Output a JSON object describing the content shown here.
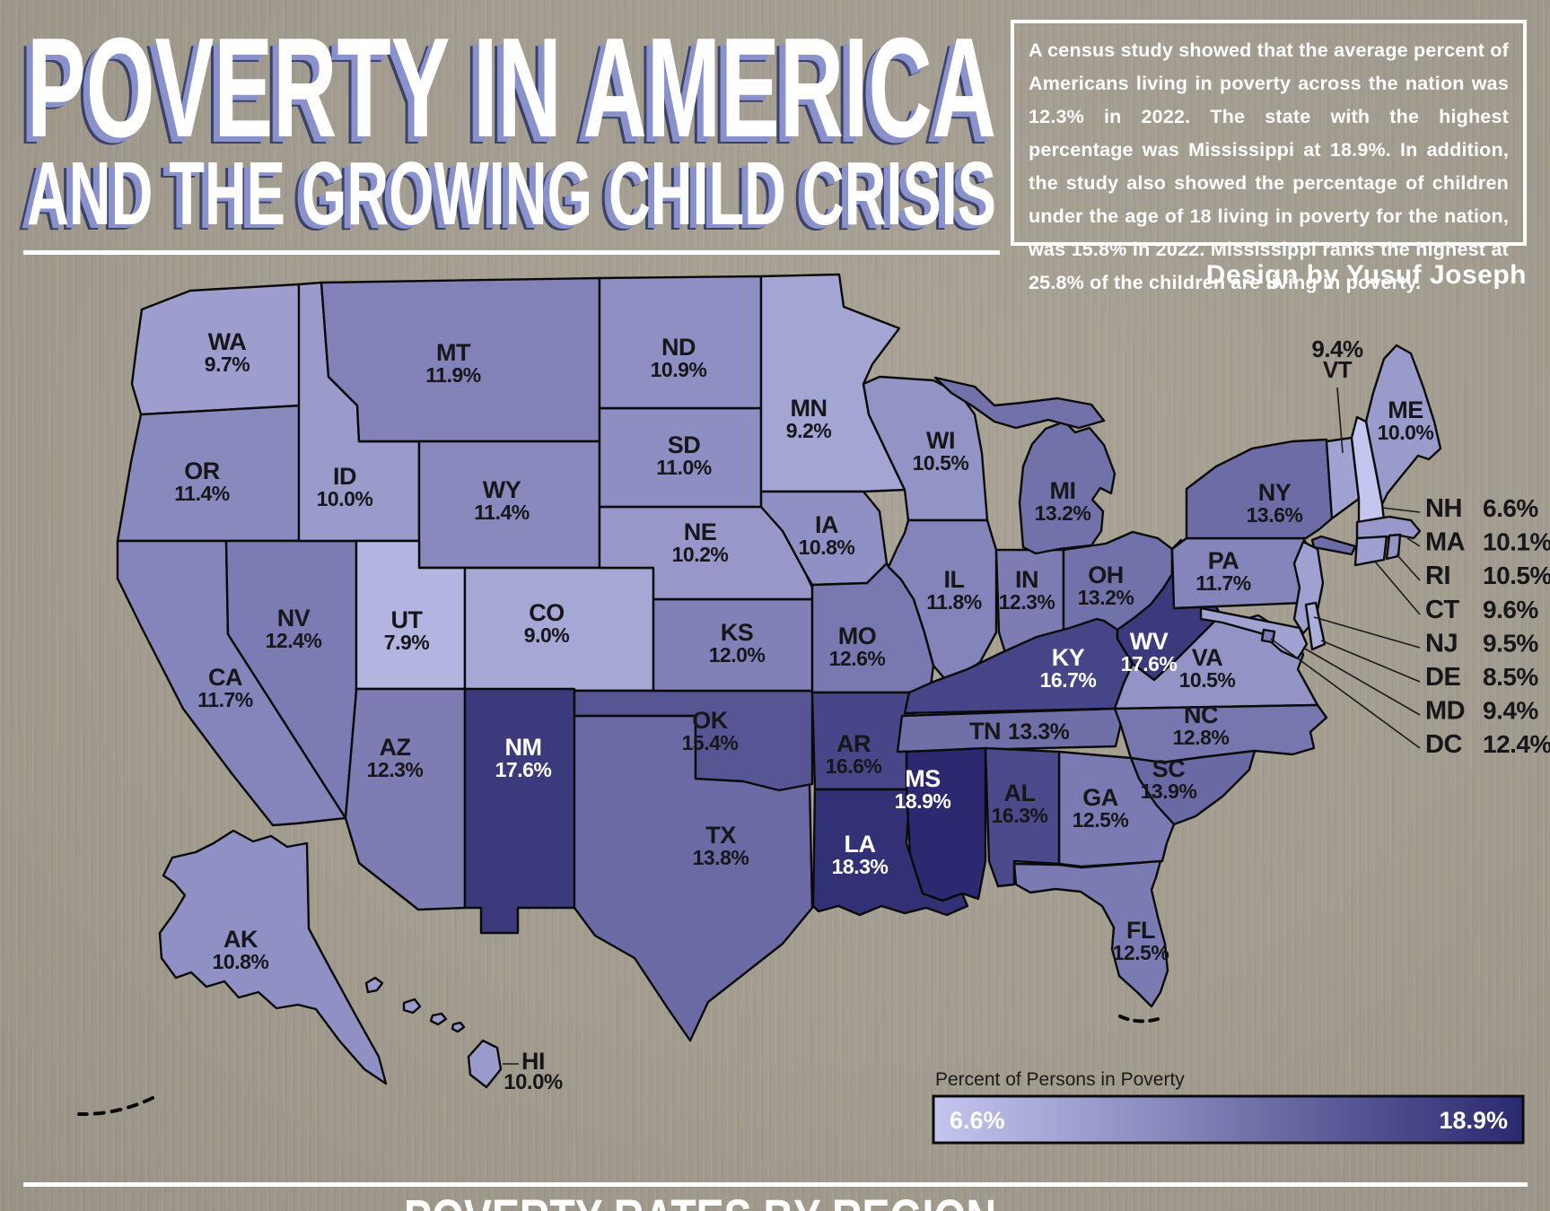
{
  "header": {
    "title_line1": "POVERTY IN AMERICA",
    "title_line2": "AND THE GROWING CHILD CRISIS",
    "intro": "A census study showed that the average percent of Americans living in poverty across the nation was 12.3% in 2022. The state with the highest percentage was Mississippi at 18.9%. In addition, the study also showed the percentage of children under the age of 18 living in poverty for the nation, was 15.8% in 2022. Mississippi ranks the highest at 25.8% of the children are living in poverty.",
    "credit": "Design by Yusuf Joseph"
  },
  "legend": {
    "label": "Percent of Persons in Poverty",
    "min_label": "6.6%",
    "max_label": "18.9%",
    "color_min": "#c3c6ee",
    "color_max": "#2b2970"
  },
  "footer": {
    "heading": "POVERTY RATES BY REGION"
  },
  "chart_data": {
    "type": "heatmap",
    "subtype": "us-choropleth-map",
    "title": "Percent of Persons in Poverty",
    "value_unit": "%",
    "value_range": [
      6.6,
      18.9
    ],
    "white_label_threshold": 16.65,
    "states": [
      {
        "abbr": "WA",
        "value": 9.7
      },
      {
        "abbr": "OR",
        "value": 11.4
      },
      {
        "abbr": "CA",
        "value": 11.7
      },
      {
        "abbr": "NV",
        "value": 12.4
      },
      {
        "abbr": "ID",
        "value": 10.0
      },
      {
        "abbr": "MT",
        "value": 11.9
      },
      {
        "abbr": "WY",
        "value": 11.4
      },
      {
        "abbr": "UT",
        "value": 7.9
      },
      {
        "abbr": "CO",
        "value": 9.0
      },
      {
        "abbr": "AZ",
        "value": 12.3
      },
      {
        "abbr": "NM",
        "value": 17.6
      },
      {
        "abbr": "TX",
        "value": 13.8
      },
      {
        "abbr": "OK",
        "value": 15.4
      },
      {
        "abbr": "KS",
        "value": 12.0
      },
      {
        "abbr": "NE",
        "value": 10.2
      },
      {
        "abbr": "SD",
        "value": 11.0
      },
      {
        "abbr": "ND",
        "value": 10.9
      },
      {
        "abbr": "MN",
        "value": 9.2
      },
      {
        "abbr": "IA",
        "value": 10.8
      },
      {
        "abbr": "MO",
        "value": 12.6
      },
      {
        "abbr": "AR",
        "value": 16.6
      },
      {
        "abbr": "LA",
        "value": 18.3
      },
      {
        "abbr": "WI",
        "value": 10.5
      },
      {
        "abbr": "IL",
        "value": 11.8
      },
      {
        "abbr": "IN",
        "value": 12.3
      },
      {
        "abbr": "MI",
        "value": 13.2
      },
      {
        "abbr": "OH",
        "value": 13.2
      },
      {
        "abbr": "KY",
        "value": 16.7
      },
      {
        "abbr": "TN",
        "value": 13.3
      },
      {
        "abbr": "WV",
        "value": 17.6
      },
      {
        "abbr": "VA",
        "value": 10.5
      },
      {
        "abbr": "NC",
        "value": 12.8
      },
      {
        "abbr": "SC",
        "value": 13.9
      },
      {
        "abbr": "GA",
        "value": 12.5
      },
      {
        "abbr": "AL",
        "value": 16.3
      },
      {
        "abbr": "MS",
        "value": 18.9
      },
      {
        "abbr": "FL",
        "value": 12.5
      },
      {
        "abbr": "PA",
        "value": 11.7
      },
      {
        "abbr": "NY",
        "value": 13.6
      },
      {
        "abbr": "ME",
        "value": 10.0
      },
      {
        "abbr": "VT",
        "value": 9.4
      },
      {
        "abbr": "NH",
        "value": 6.6
      },
      {
        "abbr": "MA",
        "value": 10.1
      },
      {
        "abbr": "RI",
        "value": 10.5
      },
      {
        "abbr": "CT",
        "value": 9.6
      },
      {
        "abbr": "NJ",
        "value": 9.5
      },
      {
        "abbr": "DE",
        "value": 8.5
      },
      {
        "abbr": "MD",
        "value": 9.4
      },
      {
        "abbr": "DC",
        "value": 12.4
      },
      {
        "abbr": "AK",
        "value": 10.8
      },
      {
        "abbr": "HI",
        "value": 10.0
      }
    ],
    "callout_list": [
      "NH",
      "MA",
      "RI",
      "CT",
      "NJ",
      "DE",
      "MD",
      "DC"
    ]
  }
}
